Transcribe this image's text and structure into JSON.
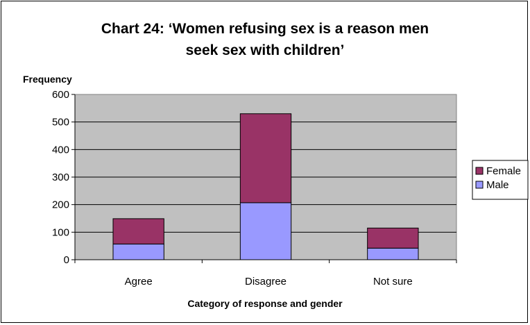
{
  "chart_data": {
    "type": "bar",
    "stacked": true,
    "title_lines": [
      "Chart 24: ‘Women refusing sex is a reason men",
      "seek sex with children’"
    ],
    "ylabel": "Frequency",
    "xlabel": "Category of response and gender",
    "categories": [
      "Agree",
      "Disagree",
      "Not sure"
    ],
    "series": [
      {
        "name": "Male",
        "values": [
          57,
          207,
          42
        ],
        "color": "#9999ff"
      },
      {
        "name": "Female",
        "values": [
          92,
          323,
          73
        ],
        "color": "#993366"
      }
    ],
    "ylim": [
      0,
      600
    ],
    "yticks": [
      0,
      100,
      200,
      300,
      400,
      500,
      600
    ],
    "legend_order": [
      "Female",
      "Male"
    ],
    "legend_position": "right",
    "grid": true,
    "plot_background": "#c0c0c0"
  }
}
